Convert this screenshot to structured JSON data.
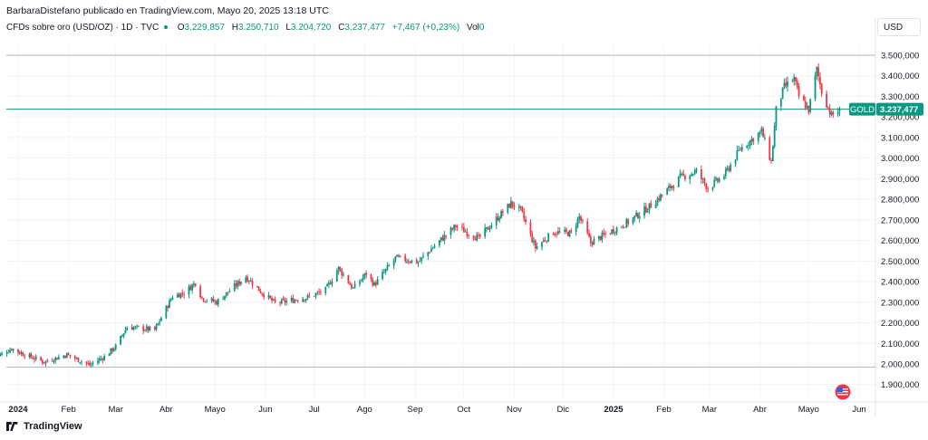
{
  "header": {
    "publisher_line": "BarbaraDistefano publicado en TradingView.com, Mayo 20, 2025 13:18 UTC"
  },
  "legend": {
    "symbol": "CFDs sobre oro (USD/OZ) · 1D · TVC",
    "open_label": "O",
    "open_value": "3.229,857",
    "high_label": "H",
    "high_value": "3.250,710",
    "low_label": "L",
    "low_value": "3.204,720",
    "close_label": "C",
    "close_value": "3.237,477",
    "change": "+7,467 (+0,23%)",
    "volume_label": "Vol",
    "volume_value": "0"
  },
  "price_axis": {
    "currency": "USD"
  },
  "last_price_tag": {
    "symbol": "GOLD",
    "value": "3.237,477"
  },
  "branding": {
    "name": "TradingView"
  },
  "colors": {
    "up": "#089981",
    "down": "#f23645",
    "grid": "#f0f3fa",
    "axis_text": "#131722",
    "tag": "#089981"
  },
  "icons": {
    "flag": "us-flag-icon",
    "logo": "tradingview-logo-icon"
  },
  "chart_data": {
    "type": "candlestick",
    "title": "CFDs sobre oro (USD/OZ) · 1D · TVC",
    "xlabel": "",
    "ylabel": "",
    "ylim": [
      1850000,
      3550000
    ],
    "y_ticks": [
      1900000,
      2000000,
      2100000,
      2200000,
      2300000,
      2400000,
      2500000,
      2600000,
      2700000,
      2800000,
      2900000,
      3000000,
      3100000,
      3200000,
      3300000,
      3400000,
      3500000
    ],
    "y_tick_labels": [
      "1.900,000",
      "2.000,000",
      "2.100,000",
      "2.200,000",
      "2.300,000",
      "2.400,000",
      "2.500,000",
      "2.600,000",
      "2.700,000",
      "2.800,000",
      "2.900,000",
      "3.000,000",
      "3.100,000",
      "3.200,000",
      "3.300,000",
      "3.400,000",
      "3.500,000"
    ],
    "x_range": [
      "2023-12-18",
      "2025-06-10"
    ],
    "x_ticks": [
      {
        "date": "2024-01-01",
        "label": "2024",
        "bold": true
      },
      {
        "date": "2024-02-01",
        "label": "Feb"
      },
      {
        "date": "2024-03-01",
        "label": "Mar"
      },
      {
        "date": "2024-04-01",
        "label": "Abr"
      },
      {
        "date": "2024-05-01",
        "label": "Mayo"
      },
      {
        "date": "2024-06-01",
        "label": "Jun"
      },
      {
        "date": "2024-07-01",
        "label": "Jul"
      },
      {
        "date": "2024-08-01",
        "label": "Ago"
      },
      {
        "date": "2024-09-01",
        "label": "Sep"
      },
      {
        "date": "2024-10-01",
        "label": "Oct"
      },
      {
        "date": "2024-11-01",
        "label": "Nov"
      },
      {
        "date": "2024-12-01",
        "label": "Dic"
      },
      {
        "date": "2025-01-01",
        "label": "2025",
        "bold": true
      },
      {
        "date": "2025-02-01",
        "label": "Feb"
      },
      {
        "date": "2025-03-01",
        "label": "Mar"
      },
      {
        "date": "2025-04-01",
        "label": "Abr"
      },
      {
        "date": "2025-05-01",
        "label": "Mayo"
      },
      {
        "date": "2025-06-01",
        "label": "Jun"
      }
    ],
    "horizontal_lines": [
      {
        "value": 3500000,
        "color": "#b2b5be"
      },
      {
        "value": 1985000,
        "color": "#b2b5be"
      },
      {
        "value": 3237477,
        "color": "#089981"
      }
    ],
    "close_anchors": [
      [
        "2023-12-18",
        2030000
      ],
      [
        "2023-12-28",
        2075000
      ],
      [
        "2024-01-05",
        2045000
      ],
      [
        "2024-01-17",
        2010000
      ],
      [
        "2024-01-31",
        2045000
      ],
      [
        "2024-02-14",
        1995000
      ],
      [
        "2024-02-23",
        2035000
      ],
      [
        "2024-03-01",
        2085000
      ],
      [
        "2024-03-08",
        2180000
      ],
      [
        "2024-03-25",
        2165000
      ],
      [
        "2024-04-05",
        2330000
      ],
      [
        "2024-04-12",
        2345000
      ],
      [
        "2024-04-19",
        2395000
      ],
      [
        "2024-04-23",
        2320000
      ],
      [
        "2024-05-02",
        2300000
      ],
      [
        "2024-05-20",
        2425000
      ],
      [
        "2024-05-30",
        2345000
      ],
      [
        "2024-06-07",
        2295000
      ],
      [
        "2024-06-28",
        2325000
      ],
      [
        "2024-07-08",
        2360000
      ],
      [
        "2024-07-16",
        2465000
      ],
      [
        "2024-07-25",
        2365000
      ],
      [
        "2024-08-02",
        2440000
      ],
      [
        "2024-08-07",
        2385000
      ],
      [
        "2024-08-20",
        2515000
      ],
      [
        "2024-09-03",
        2495000
      ],
      [
        "2024-09-13",
        2575000
      ],
      [
        "2024-09-26",
        2670000
      ],
      [
        "2024-10-10",
        2610000
      ],
      [
        "2024-10-30",
        2780000
      ],
      [
        "2024-11-05",
        2745000
      ],
      [
        "2024-11-14",
        2565000
      ],
      [
        "2024-11-25",
        2640000
      ],
      [
        "2024-12-06",
        2635000
      ],
      [
        "2024-12-11",
        2715000
      ],
      [
        "2024-12-18",
        2590000
      ],
      [
        "2025-01-10",
        2690000
      ],
      [
        "2025-01-24",
        2770000
      ],
      [
        "2025-02-11",
        2905000
      ],
      [
        "2025-02-21",
        2935000
      ],
      [
        "2025-02-28",
        2855000
      ],
      [
        "2025-03-10",
        2915000
      ],
      [
        "2025-03-20",
        3045000
      ],
      [
        "2025-04-02",
        3130000
      ],
      [
        "2025-04-08",
        2980000
      ],
      [
        "2025-04-11",
        3235000
      ],
      [
        "2025-04-16",
        3345000
      ],
      [
        "2025-04-22",
        3385000
      ],
      [
        "2025-04-25",
        3300000
      ],
      [
        "2025-05-01",
        3235000
      ],
      [
        "2025-05-06",
        3430000
      ],
      [
        "2025-05-09",
        3325000
      ],
      [
        "2025-05-15",
        3205000
      ],
      [
        "2025-05-20",
        3237477
      ]
    ],
    "last_candle": {
      "date": "2025-05-20",
      "open": 3229857,
      "high": 3250710,
      "low": 3204720,
      "close": 3237477
    }
  }
}
